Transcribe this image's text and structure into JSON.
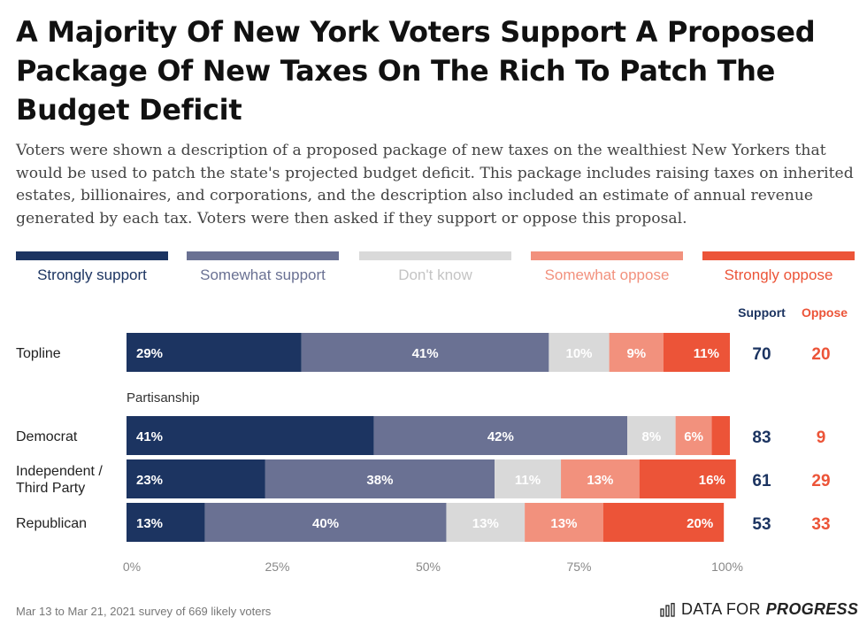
{
  "title": "A Majority Of New York Voters Support A Proposed Package Of New Taxes On The Rich To Patch The Budget Deficit",
  "subtitle": "Voters were shown a description of a proposed package of new taxes on the wealthiest New Yorkers that would be used to patch the state's projected budget deficit. This package includes raising taxes on inherited estates, billionaires, and corporations, and the description also included an estimate of annual revenue generated by each tax. Voters were then asked if they support or oppose this proposal.",
  "legend": [
    {
      "label": "Strongly support",
      "color": "#1c3461"
    },
    {
      "label": "Somewhat support",
      "color": "#6a7193"
    },
    {
      "label": "Don't know",
      "color": "#d9d9d9"
    },
    {
      "label": "Somewhat oppose",
      "color": "#f2917d"
    },
    {
      "label": "Strongly oppose",
      "color": "#ec5438"
    }
  ],
  "summary_headers": {
    "support": "Support",
    "oppose": "Oppose"
  },
  "group_label": "Partisanship",
  "footer": {
    "note": "Mar 13 to Mar 21, 2021 survey of 669 likely voters",
    "brand_regular": "DATA FOR",
    "brand_bold": "PROGRESS"
  },
  "chart_data": {
    "type": "bar",
    "orientation": "horizontal",
    "stacked": true,
    "categories": [
      "Topline",
      "Democrat",
      "Independent / Third Party",
      "Republican"
    ],
    "series": [
      {
        "name": "Strongly support",
        "values": [
          29,
          41,
          23,
          13
        ],
        "labels": [
          "29%",
          "41%",
          "23%",
          "13%"
        ],
        "color": "#1c3461"
      },
      {
        "name": "Somewhat support",
        "values": [
          41,
          42,
          38,
          40
        ],
        "labels": [
          "41%",
          "42%",
          "38%",
          "40%"
        ],
        "color": "#6a7193"
      },
      {
        "name": "Don't know",
        "values": [
          10,
          8,
          11,
          13
        ],
        "labels": [
          "10%",
          "8%",
          "11%",
          "13%"
        ],
        "color": "#d9d9d9"
      },
      {
        "name": "Somewhat oppose",
        "values": [
          9,
          6,
          13,
          13
        ],
        "labels": [
          "9%",
          "6%",
          "13%",
          "13%"
        ],
        "color": "#f2917d"
      },
      {
        "name": "Strongly oppose",
        "values": [
          11,
          3,
          16,
          20
        ],
        "labels": [
          "11%",
          "",
          "16%",
          "20%"
        ],
        "color": "#ec5438"
      }
    ],
    "support_totals": [
      70,
      83,
      61,
      53
    ],
    "oppose_totals": [
      20,
      9,
      29,
      33
    ],
    "xlim": [
      0,
      100
    ],
    "xticks": [
      "0%",
      "25%",
      "50%",
      "75%",
      "100%"
    ],
    "grid": false,
    "legend_position": "top"
  }
}
